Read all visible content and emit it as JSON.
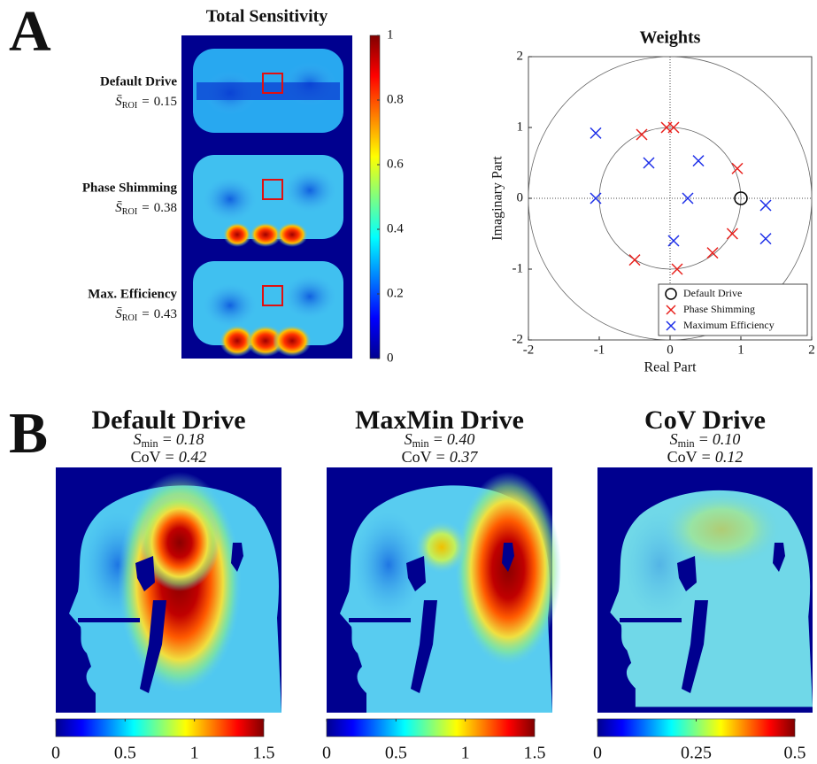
{
  "panel_labels": [
    "A",
    "B"
  ],
  "chart_data": [
    {
      "type": "heatmap-stack",
      "title": "Total Sensitivity",
      "rows": [
        {
          "label": "Default Drive",
          "stats": [
            {
              "symbol": "S̄",
              "subscript": "ROI",
              "relation": "=",
              "value": "0.15"
            }
          ]
        },
        {
          "label": "Phase Shimming",
          "stats": [
            {
              "symbol": "S̄",
              "subscript": "ROI",
              "relation": "=",
              "value": "0.38"
            }
          ]
        },
        {
          "label": "Max. Efficiency",
          "stats": [
            {
              "symbol": "S̄",
              "subscript": "ROI",
              "relation": "=",
              "value": "0.43"
            }
          ]
        }
      ],
      "clim": [
        0,
        1
      ],
      "cticks": [
        0,
        0.2,
        0.4,
        0.6,
        0.8,
        1
      ]
    },
    {
      "type": "scatter",
      "title": "Weights",
      "xlabel": "Real Part",
      "ylabel": "Imaginary Part",
      "xlim": [
        -2,
        2
      ],
      "ylim": [
        -2,
        2
      ],
      "xticks": [
        -2,
        -1,
        0,
        1,
        2
      ],
      "yticks": [
        -2,
        -1,
        0,
        1,
        2
      ],
      "legend": "lower right",
      "series": [
        {
          "name": "Default Drive",
          "marker": "o",
          "color": "#000000",
          "x": [
            1
          ],
          "y": [
            0
          ]
        },
        {
          "name": "Phase Shimming",
          "marker": "x",
          "color": "#e8201c",
          "x": [
            -0.4,
            -0.05,
            0.05,
            0.95,
            0.88,
            0.6,
            0.1,
            -0.5
          ],
          "y": [
            0.9,
            1.0,
            1.0,
            0.42,
            -0.5,
            -0.77,
            -1.0,
            -0.87
          ]
        },
        {
          "name": "Maximum Efficiency",
          "marker": "x",
          "color": "#1c2ee8",
          "x": [
            -1.05,
            -0.3,
            0.4,
            0.25,
            -1.05,
            0.05,
            1.35,
            1.35
          ],
          "y": [
            0.92,
            0.5,
            0.53,
            0.0,
            0.0,
            -0.6,
            -0.1,
            -0.57
          ]
        }
      ]
    },
    {
      "type": "heatmap",
      "title": "Default Drive",
      "stats": [
        {
          "symbol": "S",
          "subscript": "min",
          "relation": "=",
          "value": "0.18"
        },
        {
          "symbol": "CoV",
          "relation": "=",
          "value": "0.42"
        }
      ],
      "clim": [
        0,
        1.5
      ],
      "cticks": [
        0,
        0.5,
        1,
        1.5
      ]
    },
    {
      "type": "heatmap",
      "title": "MaxMin Drive",
      "stats": [
        {
          "symbol": "S",
          "subscript": "min",
          "relation": "=",
          "value": "0.40"
        },
        {
          "symbol": "CoV",
          "relation": "=",
          "value": "0.37"
        }
      ],
      "clim": [
        0,
        1.5
      ],
      "cticks": [
        0,
        0.5,
        1,
        1.5
      ]
    },
    {
      "type": "heatmap",
      "title": "CoV Drive",
      "stats": [
        {
          "symbol": "S",
          "subscript": "min",
          "relation": "=",
          "value": "0.10"
        },
        {
          "symbol": "CoV",
          "relation": "=",
          "value": "0.12"
        }
      ],
      "clim": [
        0,
        0.5
      ],
      "cticks": [
        0,
        0.25,
        0.5
      ]
    }
  ]
}
